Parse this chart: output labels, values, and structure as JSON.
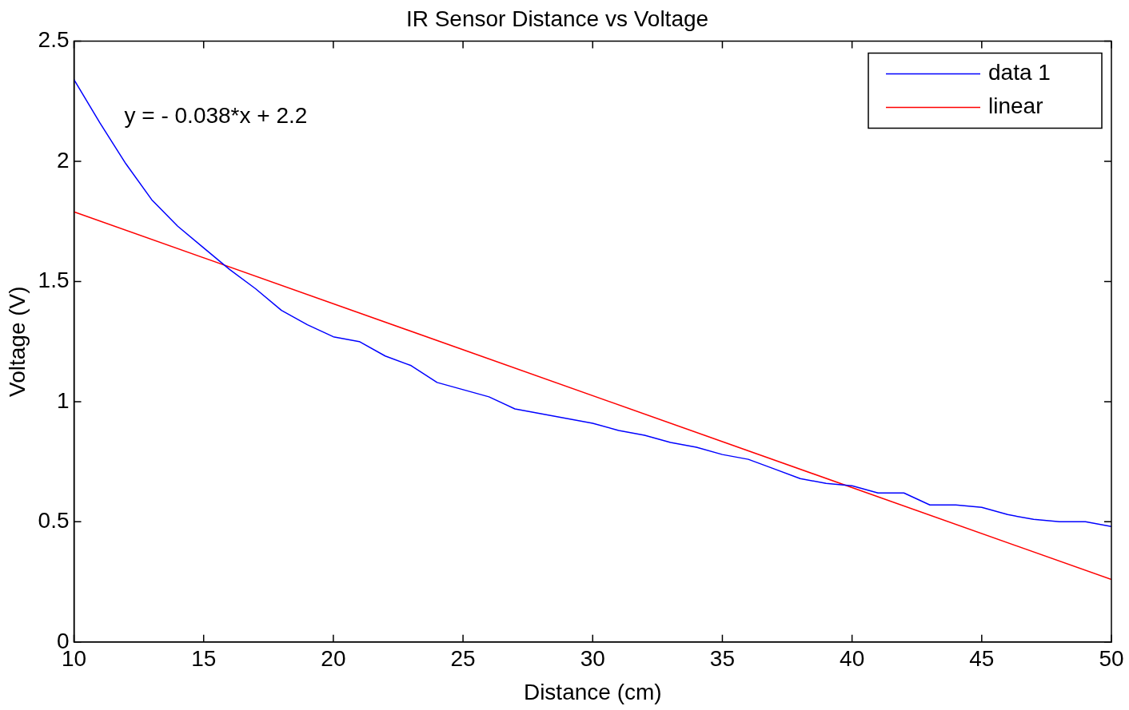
{
  "chart_data": {
    "type": "line",
    "title": "IR Sensor Distance vs Voltage",
    "xlabel": "Distance (cm)",
    "ylabel": "Voltage (V)",
    "xlim": [
      10,
      50
    ],
    "xticks": [
      10,
      15,
      20,
      25,
      30,
      35,
      40,
      45,
      50
    ],
    "ylim": [
      0,
      2.5
    ],
    "yticks": [
      0,
      0.5,
      1,
      1.5,
      2,
      2.5
    ],
    "grid": false,
    "legend": "top right",
    "marker": "none",
    "line_style": "solid",
    "annotations": [
      "y = - 0.038*x + 2.2"
    ],
    "series": [
      {
        "name": "data 1",
        "color": "#0000ff",
        "x": [
          10,
          11,
          12,
          13,
          14,
          15,
          16,
          17,
          18,
          19,
          20,
          21,
          22,
          23,
          24,
          25,
          26,
          27,
          28,
          29,
          30,
          31,
          32,
          33,
          34,
          35,
          36,
          37,
          38,
          39,
          40,
          41,
          42,
          43,
          44,
          45,
          46,
          47,
          48,
          49,
          50
        ],
        "values": [
          2.34,
          2.16,
          1.99,
          1.84,
          1.73,
          1.64,
          1.55,
          1.47,
          1.38,
          1.32,
          1.27,
          1.25,
          1.19,
          1.15,
          1.08,
          1.05,
          1.02,
          0.97,
          0.95,
          0.93,
          0.91,
          0.88,
          0.86,
          0.83,
          0.81,
          0.78,
          0.76,
          0.72,
          0.68,
          0.66,
          0.65,
          0.62,
          0.62,
          0.57,
          0.57,
          0.56,
          0.53,
          0.51,
          0.5,
          0.5,
          0.48
        ]
      },
      {
        "name": "linear",
        "color": "#ff0000",
        "x": [
          10,
          50
        ],
        "values": [
          1.79,
          0.26
        ]
      }
    ]
  }
}
